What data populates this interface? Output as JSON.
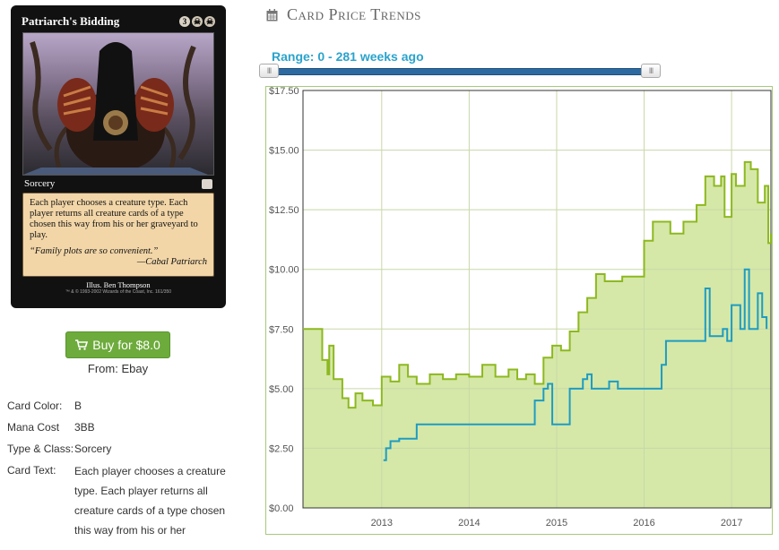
{
  "card": {
    "name": "Patriarch's Bidding",
    "mana_generic": "3",
    "type_line": "Sorcery",
    "rules_text": "Each player chooses a creature type. Each player returns all creature cards of a type chosen this way from his or her graveyard to play.",
    "flavor": "“Family plots are so convenient.”",
    "flavor_attrib": "—Cabal Patriarch",
    "illus": "Illus. Ben Thompson",
    "copyright": "™ & © 1993-2002 Wizards of the Coast, Inc. 161/350"
  },
  "buy": {
    "label": "Buy for $8.0",
    "icon": "cart-icon",
    "color": "#6dab3c"
  },
  "from": "From: Ebay",
  "details": {
    "color_label": "Card Color:",
    "color_value": "B",
    "mana_label": "Mana Cost",
    "mana_value": "3BB",
    "type_label": "Type & Class:",
    "type_value": "Sorcery",
    "text_label": "Card Text:",
    "text_value": "Each player chooses a creature type. Each player returns all creature cards of a type chosen this way from his or her"
  },
  "chart_header": {
    "title": "Card Price Trends",
    "icon": "calendar-icon"
  },
  "range": {
    "label": "Range: 0 - 281 weeks ago",
    "min_weeks": 0,
    "max_weeks": 281
  },
  "chart_data": {
    "type": "area",
    "title": "",
    "xlabel": "",
    "ylabel": "",
    "ylim": [
      0,
      17.5
    ],
    "xlim": [
      2012.1,
      2017.45
    ],
    "grid": true,
    "y_ticks": [
      "$0.00",
      "$2.50",
      "$5.00",
      "$7.50",
      "$10.00",
      "$12.50",
      "$15.00",
      "$17.50"
    ],
    "y_tick_values": [
      0,
      2.5,
      5,
      7.5,
      10,
      12.5,
      15,
      17.5
    ],
    "x_ticks": [
      "2013",
      "2014",
      "2015",
      "2016",
      "2017"
    ],
    "x_tick_values": [
      2013,
      2014,
      2015,
      2016,
      2017
    ],
    "series": [
      {
        "color": "#8db820",
        "fill": "#d5e8a8",
        "points": [
          [
            2012.1,
            7.5
          ],
          [
            2012.3,
            7.5
          ],
          [
            2012.32,
            6.2
          ],
          [
            2012.38,
            5.6
          ],
          [
            2012.4,
            6.8
          ],
          [
            2012.45,
            5.4
          ],
          [
            2012.55,
            4.6
          ],
          [
            2012.62,
            4.2
          ],
          [
            2012.7,
            4.8
          ],
          [
            2012.78,
            4.5
          ],
          [
            2012.9,
            4.3
          ],
          [
            2013.0,
            5.5
          ],
          [
            2013.1,
            5.3
          ],
          [
            2013.2,
            6.0
          ],
          [
            2013.3,
            5.5
          ],
          [
            2013.4,
            5.2
          ],
          [
            2013.55,
            5.6
          ],
          [
            2013.7,
            5.4
          ],
          [
            2013.85,
            5.6
          ],
          [
            2014.0,
            5.5
          ],
          [
            2014.15,
            6.0
          ],
          [
            2014.3,
            5.5
          ],
          [
            2014.45,
            5.8
          ],
          [
            2014.55,
            5.4
          ],
          [
            2014.65,
            5.6
          ],
          [
            2014.75,
            5.2
          ],
          [
            2014.85,
            6.3
          ],
          [
            2014.95,
            6.8
          ],
          [
            2015.05,
            6.6
          ],
          [
            2015.15,
            7.4
          ],
          [
            2015.25,
            8.2
          ],
          [
            2015.35,
            8.8
          ],
          [
            2015.45,
            9.8
          ],
          [
            2015.55,
            9.5
          ],
          [
            2015.75,
            9.7
          ],
          [
            2015.95,
            9.7
          ],
          [
            2016.0,
            11.2
          ],
          [
            2016.1,
            12.0
          ],
          [
            2016.3,
            11.5
          ],
          [
            2016.45,
            12.0
          ],
          [
            2016.6,
            12.7
          ],
          [
            2016.7,
            13.9
          ],
          [
            2016.8,
            13.5
          ],
          [
            2016.88,
            13.9
          ],
          [
            2016.92,
            12.2
          ],
          [
            2017.0,
            14.0
          ],
          [
            2017.05,
            13.5
          ],
          [
            2017.15,
            14.5
          ],
          [
            2017.22,
            14.2
          ],
          [
            2017.3,
            12.8
          ],
          [
            2017.38,
            13.5
          ],
          [
            2017.42,
            11.1
          ],
          [
            2017.45,
            11.5
          ]
        ]
      },
      {
        "color": "#1e9cc2",
        "points": [
          [
            2013.02,
            2.0
          ],
          [
            2013.05,
            2.5
          ],
          [
            2013.1,
            2.8
          ],
          [
            2013.2,
            2.9
          ],
          [
            2013.35,
            2.9
          ],
          [
            2013.4,
            3.5
          ],
          [
            2014.0,
            3.5
          ],
          [
            2014.7,
            3.5
          ],
          [
            2014.75,
            4.5
          ],
          [
            2014.85,
            5.0
          ],
          [
            2014.9,
            5.2
          ],
          [
            2014.95,
            3.5
          ],
          [
            2015.1,
            3.5
          ],
          [
            2015.15,
            5.0
          ],
          [
            2015.3,
            5.4
          ],
          [
            2015.35,
            5.6
          ],
          [
            2015.4,
            5.0
          ],
          [
            2015.6,
            5.3
          ],
          [
            2015.7,
            5.0
          ],
          [
            2015.95,
            5.0
          ],
          [
            2016.15,
            5.0
          ],
          [
            2016.2,
            6.0
          ],
          [
            2016.25,
            7.0
          ],
          [
            2016.65,
            7.0
          ],
          [
            2016.7,
            9.2
          ],
          [
            2016.75,
            7.2
          ],
          [
            2016.9,
            7.5
          ],
          [
            2016.95,
            7.0
          ],
          [
            2017.0,
            8.5
          ],
          [
            2017.1,
            7.5
          ],
          [
            2017.15,
            10.0
          ],
          [
            2017.2,
            7.5
          ],
          [
            2017.3,
            9.0
          ],
          [
            2017.35,
            8.0
          ],
          [
            2017.4,
            7.5
          ]
        ]
      }
    ]
  }
}
